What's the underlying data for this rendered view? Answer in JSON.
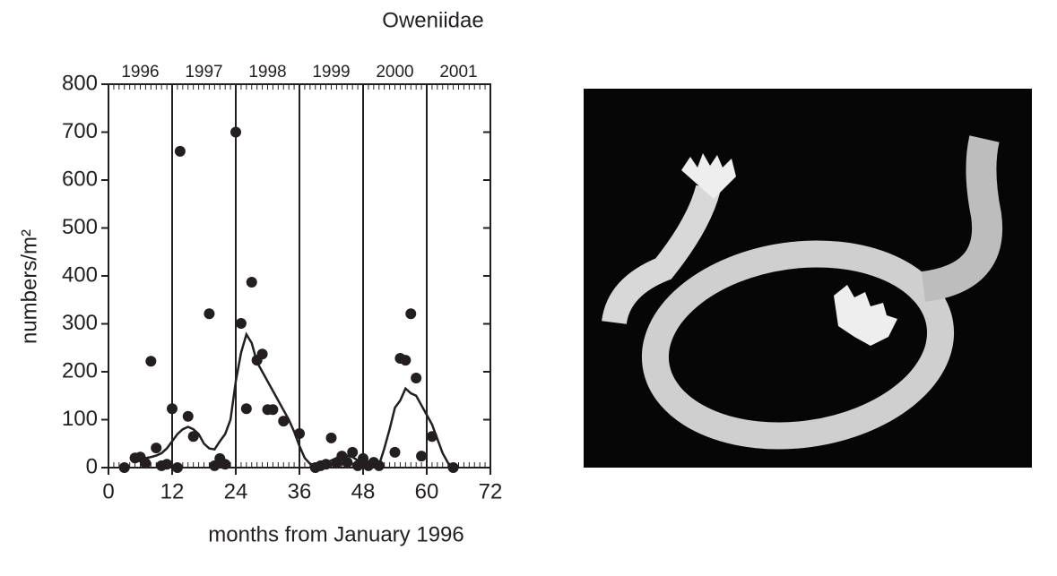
{
  "chart_data": {
    "type": "scatter",
    "title": "Oweniidae",
    "x_label": "months from January 1996",
    "y_label": "numbers/m²",
    "xlim": [
      0,
      72
    ],
    "xticks": [
      0,
      12,
      24,
      36,
      48,
      60,
      72
    ],
    "ylim": [
      0,
      800
    ],
    "yticks": [
      0,
      100,
      200,
      300,
      400,
      500,
      600,
      700,
      800
    ],
    "x_minor_tick_step": 1,
    "year_labels": [
      "1996",
      "1997",
      "1998",
      "1999",
      "2000",
      "2001"
    ],
    "year_lines": [
      12,
      24,
      36,
      48,
      60
    ],
    "color": "#231f20",
    "points": {
      "x": [
        3,
        5,
        6,
        7,
        8,
        9,
        10,
        11,
        12,
        13,
        13.5,
        15,
        16,
        19,
        20,
        21,
        22,
        24,
        25,
        26,
        27,
        28,
        29,
        30,
        31,
        33,
        36,
        39,
        40,
        41,
        42,
        43,
        44,
        45,
        46,
        47,
        48,
        49,
        50,
        51,
        54,
        55,
        56,
        57,
        58,
        59,
        61,
        65
      ],
      "y": [
        0,
        20,
        22,
        9,
        222,
        41,
        4,
        7,
        123,
        0,
        660,
        107,
        65,
        321,
        4,
        19,
        7,
        700,
        301,
        123,
        387,
        224,
        237,
        121,
        121,
        97,
        71,
        0,
        4,
        7,
        62,
        9,
        24,
        11,
        32,
        4,
        19,
        4,
        11,
        4,
        32,
        228,
        224,
        321,
        187,
        24,
        65,
        0
      ]
    },
    "trend": {
      "x": [
        5,
        6,
        7,
        8,
        9,
        10,
        11,
        12,
        13,
        14,
        15,
        16,
        17,
        18,
        19,
        20,
        21,
        22,
        23,
        24,
        25,
        26,
        27,
        28,
        29,
        30,
        31,
        32,
        33,
        34,
        35,
        36,
        37,
        38,
        39,
        40,
        41,
        42,
        43,
        44,
        45,
        46,
        47,
        48,
        49,
        50,
        51,
        52,
        53,
        54,
        55,
        56,
        57,
        58,
        59,
        60,
        61,
        62,
        63,
        64,
        65
      ],
      "y": [
        18,
        20,
        20,
        22,
        25,
        30,
        40,
        55,
        70,
        80,
        85,
        80,
        70,
        50,
        40,
        38,
        55,
        70,
        100,
        180,
        240,
        278,
        260,
        220,
        200,
        180,
        160,
        140,
        120,
        100,
        75,
        45,
        20,
        8,
        5,
        5,
        10,
        15,
        20,
        25,
        25,
        22,
        15,
        15,
        10,
        5,
        5,
        40,
        80,
        125,
        140,
        165,
        155,
        150,
        130,
        110,
        90,
        60,
        30,
        10,
        0
      ]
    }
  }
}
